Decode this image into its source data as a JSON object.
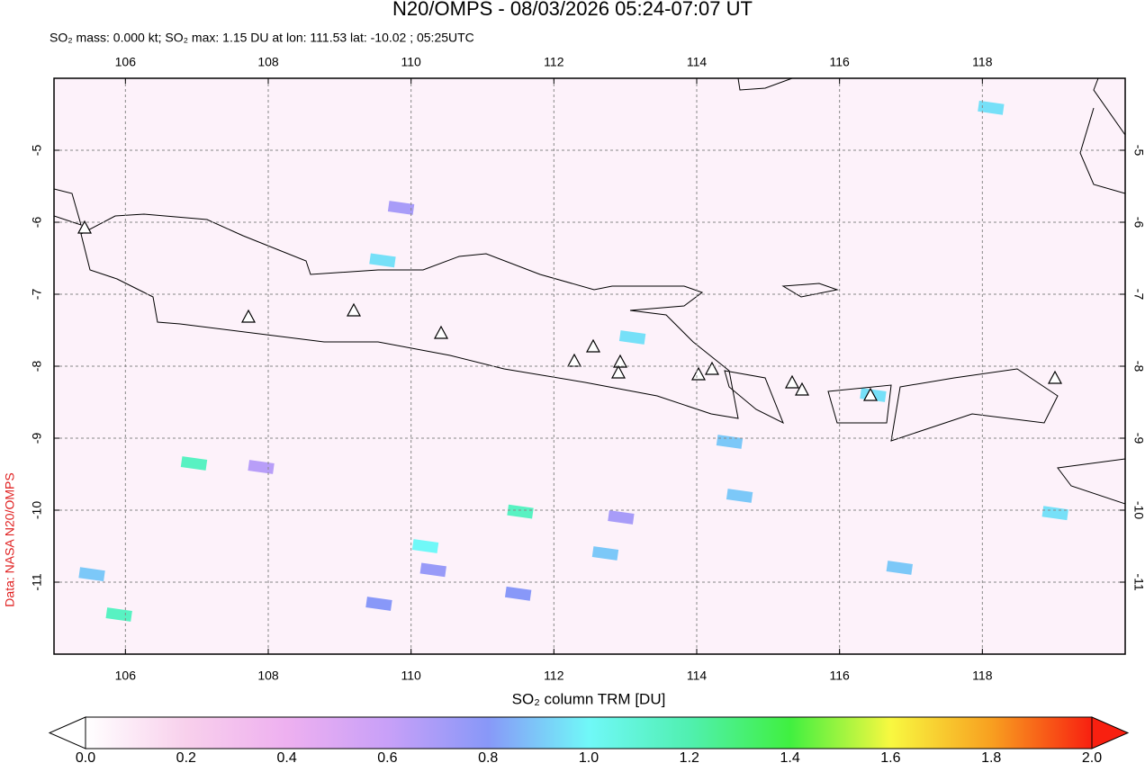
{
  "chart_data": {
    "type": "map",
    "title": "N20/OMPS - 08/03/2026 05:24-07:07 UT",
    "subtitle": "SO₂ mass: 0.000 kt; SO₂ max: 1.15 DU at lon: 111.53 lat: -10.02 ; 05:25UTC",
    "credit": "Data: NASA N20/OMPS",
    "xlim": [
      105,
      120
    ],
    "ylim": [
      -12,
      -4
    ],
    "xticks": [
      106,
      108,
      110,
      112,
      114,
      116,
      118
    ],
    "yticks": [
      -5,
      -6,
      -7,
      -8,
      -9,
      -10,
      -11
    ],
    "grid": true,
    "cells": [
      {
        "lon": 111.53,
        "lat": -10.02,
        "value": 1.15
      },
      {
        "lon": 110.2,
        "lat": -10.5,
        "value": 1.0
      },
      {
        "lon": 106.96,
        "lat": -9.35,
        "value": 1.15
      },
      {
        "lon": 105.91,
        "lat": -11.45,
        "value": 1.15
      },
      {
        "lon": 109.6,
        "lat": -6.53,
        "value": 0.95
      },
      {
        "lon": 113.1,
        "lat": -7.6,
        "value": 0.95
      },
      {
        "lon": 105.53,
        "lat": -10.89,
        "value": 0.9
      },
      {
        "lon": 114.6,
        "lat": -9.8,
        "value": 0.9
      },
      {
        "lon": 114.46,
        "lat": -9.05,
        "value": 0.9
      },
      {
        "lon": 112.72,
        "lat": -10.6,
        "value": 0.9
      },
      {
        "lon": 119.02,
        "lat": -10.04,
        "value": 0.95
      },
      {
        "lon": 118.12,
        "lat": -4.41,
        "value": 0.95
      },
      {
        "lon": 109.86,
        "lat": -5.8,
        "value": 0.7
      },
      {
        "lon": 110.31,
        "lat": -10.83,
        "value": 0.75
      },
      {
        "lon": 107.9,
        "lat": -9.4,
        "value": 0.65
      },
      {
        "lon": 112.94,
        "lat": -10.1,
        "value": 0.7
      },
      {
        "lon": 111.5,
        "lat": -11.16,
        "value": 0.8
      },
      {
        "lon": 109.55,
        "lat": -11.3,
        "value": 0.8
      },
      {
        "lon": 116.47,
        "lat": -8.4,
        "value": 0.95
      },
      {
        "lon": 116.84,
        "lat": -10.8,
        "value": 0.9
      }
    ],
    "colorbar": {
      "label": "SO₂ column TRM [DU]",
      "lim": [
        0,
        2
      ],
      "ticks": [
        {
          "value": 0,
          "label": "0.0"
        },
        {
          "value": 0.2,
          "label": "0.2"
        },
        {
          "value": 0.4,
          "label": "0.4"
        },
        {
          "value": 0.6,
          "label": "0.6"
        },
        {
          "value": 0.8,
          "label": "0.8"
        },
        {
          "value": 1,
          "label": "1.0"
        },
        {
          "value": 1.2,
          "label": "1.2"
        },
        {
          "value": 1.4,
          "label": "1.4"
        },
        {
          "value": 1.6,
          "label": "1.6"
        },
        {
          "value": 1.8,
          "label": "1.8"
        },
        {
          "value": 2,
          "label": "2.0"
        }
      ]
    }
  }
}
